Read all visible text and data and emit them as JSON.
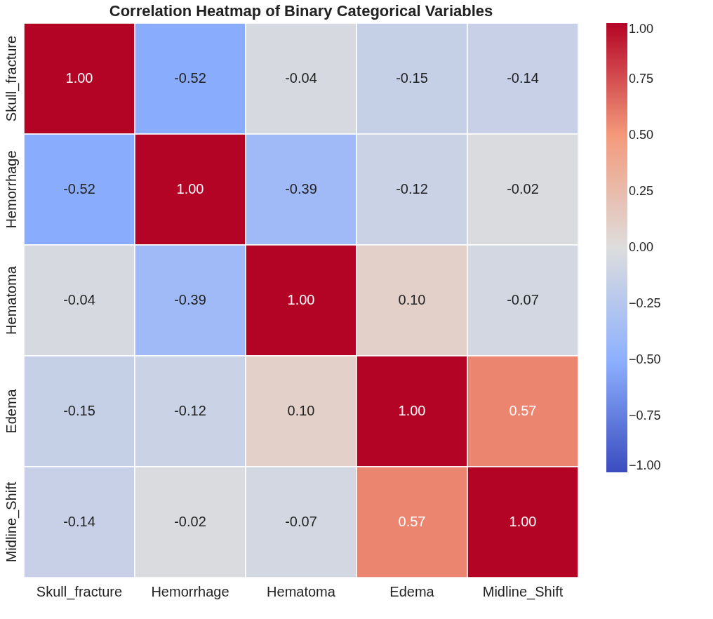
{
  "chart_data": {
    "type": "heatmap",
    "title": "Correlation Heatmap of Binary Categorical Variables",
    "categories": [
      "Skull_fracture",
      "Hemorrhage",
      "Hematoma",
      "Edema",
      "Midline_Shift"
    ],
    "y_categories": [
      "Skull_fracture",
      "Hemorrhage",
      "Hematoma",
      "Edema",
      "Midline_Shift"
    ],
    "cells": [
      [
        1.0,
        -0.52,
        -0.04,
        -0.15,
        -0.14
      ],
      [
        -0.52,
        1.0,
        -0.39,
        -0.12,
        -0.02
      ],
      [
        -0.04,
        -0.39,
        1.0,
        0.1,
        -0.07
      ],
      [
        -0.15,
        -0.12,
        0.1,
        1.0,
        0.57
      ],
      [
        -0.14,
        -0.02,
        -0.07,
        0.57,
        1.0
      ]
    ],
    "cell_labels": [
      [
        "1.00",
        "-0.52",
        "-0.04",
        "-0.15",
        "-0.14"
      ],
      [
        "-0.52",
        "1.00",
        "-0.39",
        "-0.12",
        "-0.02"
      ],
      [
        "-0.04",
        "-0.39",
        "1.00",
        "0.10",
        "-0.07"
      ],
      [
        "-0.15",
        "-0.12",
        "0.10",
        "1.00",
        "0.57"
      ],
      [
        "-0.14",
        "-0.02",
        "-0.07",
        "0.57",
        "1.00"
      ]
    ],
    "clim": [
      -1,
      1
    ],
    "cticks": [
      {
        "value": -1,
        "label": "−1.00"
      },
      {
        "value": -0.75,
        "label": "−0.75"
      },
      {
        "value": -0.5,
        "label": "−0.50"
      },
      {
        "value": -0.25,
        "label": "−0.25"
      },
      {
        "value": 0,
        "label": "0.00"
      },
      {
        "value": 0.25,
        "label": "0.25"
      },
      {
        "value": 0.5,
        "label": "0.50"
      },
      {
        "value": 0.75,
        "label": "0.75"
      },
      {
        "value": 1,
        "label": "1.00"
      }
    ]
  }
}
